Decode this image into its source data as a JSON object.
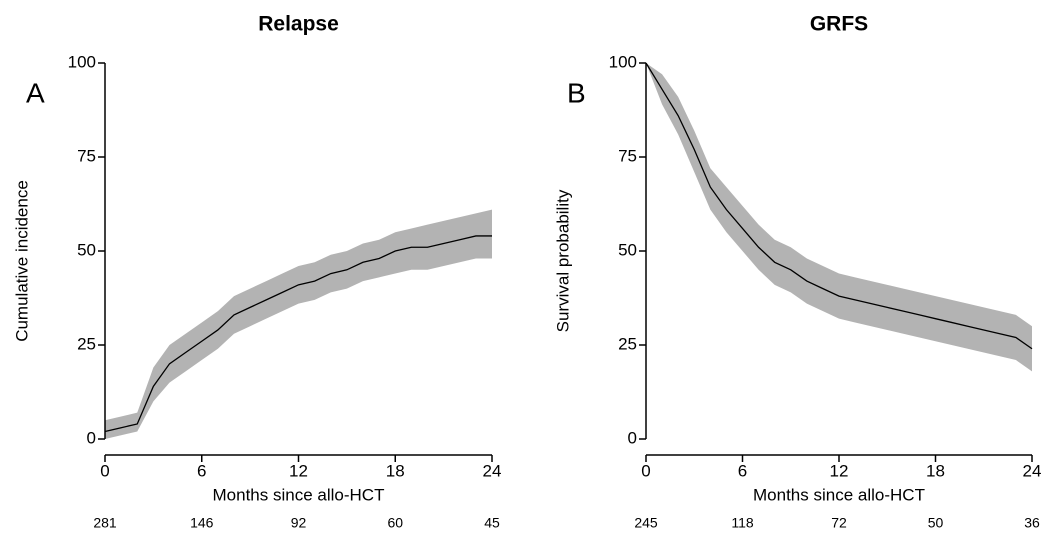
{
  "chart_data": [
    {
      "type": "line",
      "title": "Relapse",
      "panel_label": "A",
      "xlabel": "Months since allo-HCT",
      "ylabel": "Cumulative incidence",
      "x": [
        0,
        1,
        2,
        3,
        4,
        5,
        6,
        7,
        8,
        9,
        10,
        11,
        12,
        13,
        14,
        15,
        16,
        17,
        18,
        19,
        20,
        21,
        22,
        23,
        24
      ],
      "series": [
        {
          "color": "#000000",
          "values": [
            2,
            3,
            4,
            14,
            20,
            23,
            26,
            29,
            33,
            35,
            37,
            39,
            41,
            42,
            44,
            45,
            47,
            48,
            50,
            51,
            51,
            52,
            53,
            54,
            54
          ]
        }
      ],
      "band": {
        "color": "#b3b3b3",
        "lower": [
          0,
          1,
          2,
          10,
          15,
          18,
          21,
          24,
          28,
          30,
          32,
          34,
          36,
          37,
          39,
          40,
          42,
          43,
          44,
          45,
          45,
          46,
          47,
          48,
          48
        ],
        "upper": [
          5,
          6,
          7,
          19,
          25,
          28,
          31,
          34,
          38,
          40,
          42,
          44,
          46,
          47,
          49,
          50,
          52,
          53,
          55,
          56,
          57,
          58,
          59,
          60,
          61
        ]
      },
      "xlim": [
        0,
        24
      ],
      "xticks": [
        0,
        6,
        12,
        18,
        24
      ],
      "ylim": [
        0,
        100
      ],
      "yticks": [
        0,
        25,
        50,
        75,
        100
      ],
      "at_risk": [
        281,
        146,
        92,
        60,
        45
      ],
      "grid": false
    },
    {
      "type": "line",
      "title": "GRFS",
      "panel_label": "B",
      "xlabel": "Months since allo-HCT",
      "ylabel": "Survival probability",
      "x": [
        0,
        1,
        2,
        3,
        4,
        5,
        6,
        7,
        8,
        9,
        10,
        11,
        12,
        13,
        14,
        15,
        16,
        17,
        18,
        19,
        20,
        21,
        22,
        23,
        24
      ],
      "series": [
        {
          "color": "#000000",
          "values": [
            100,
            93,
            86,
            77,
            67,
            61,
            56,
            51,
            47,
            45,
            42,
            40,
            38,
            37,
            36,
            35,
            34,
            33,
            32,
            31,
            30,
            29,
            28,
            27,
            24
          ]
        }
      ],
      "band": {
        "color": "#b3b3b3",
        "lower": [
          100,
          89,
          81,
          71,
          61,
          55,
          50,
          45,
          41,
          39,
          36,
          34,
          32,
          31,
          30,
          29,
          28,
          27,
          26,
          25,
          24,
          23,
          22,
          21,
          18
        ],
        "upper": [
          100,
          97,
          91,
          82,
          72,
          67,
          62,
          57,
          53,
          51,
          48,
          46,
          44,
          43,
          42,
          41,
          40,
          39,
          38,
          37,
          36,
          35,
          34,
          33,
          30
        ]
      },
      "xlim": [
        0,
        24
      ],
      "xticks": [
        0,
        6,
        12,
        18,
        24
      ],
      "ylim": [
        0,
        100
      ],
      "yticks": [
        0,
        25,
        50,
        75,
        100
      ],
      "at_risk": [
        245,
        118,
        72,
        50,
        36
      ],
      "grid": false
    }
  ]
}
